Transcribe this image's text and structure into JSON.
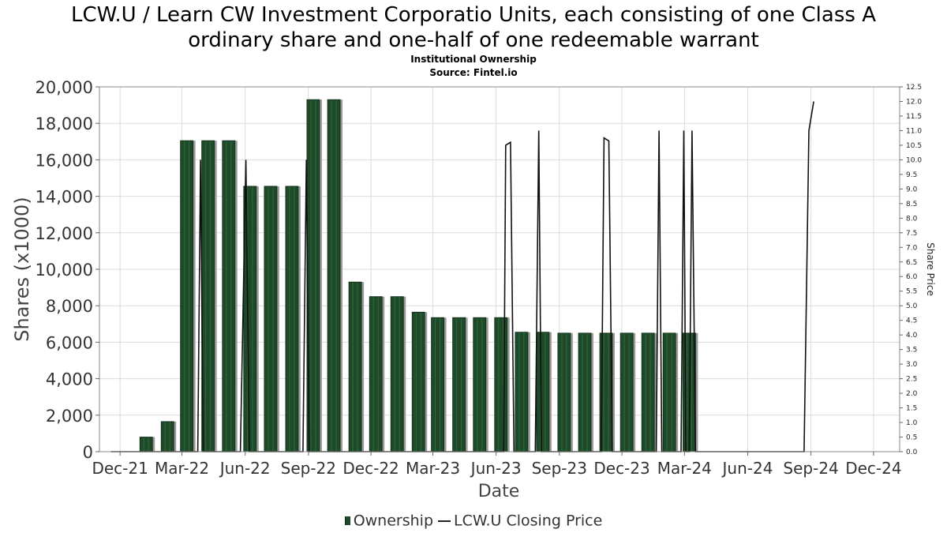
{
  "chart_data": {
    "type": "bar",
    "title_line1": "LCW.U / Learn CW Investment Corporatio Units, each consisting of one Class A",
    "title_line2": "ordinary share and one-half of one redeemable warrant",
    "subtitle": "Institutional Ownership",
    "source": "Source: Fintel.io",
    "xlabel": "Date",
    "ylabel": "Shares (x1000)",
    "y2label": "Share Price",
    "ylim": [
      0,
      20000
    ],
    "y2lim": [
      0,
      12.5
    ],
    "x_range": [
      "2021-11-01",
      "2025-01-08"
    ],
    "y_ticks": [
      "0",
      "2,000",
      "4,000",
      "6,000",
      "8,000",
      "10,000",
      "12,000",
      "14,000",
      "16,000",
      "18,000",
      "20,000"
    ],
    "y2_ticks": [
      "0.0",
      "0.5",
      "1.0",
      "1.5",
      "2.0",
      "2.5",
      "3.0",
      "3.5",
      "4.0",
      "4.5",
      "5.0",
      "5.5",
      "6.0",
      "6.5",
      "7.0",
      "7.5",
      "8.0",
      "8.5",
      "9.0",
      "9.5",
      "10.0",
      "10.5",
      "11.0",
      "11.5",
      "12.0",
      "12.5"
    ],
    "x_ticks": [
      {
        "label": "Dec-21",
        "date": "2021-12-01"
      },
      {
        "label": "Mar-22",
        "date": "2022-03-01"
      },
      {
        "label": "Jun-22",
        "date": "2022-06-01"
      },
      {
        "label": "Sep-22",
        "date": "2022-09-01"
      },
      {
        "label": "Dec-22",
        "date": "2022-12-01"
      },
      {
        "label": "Mar-23",
        "date": "2023-03-01"
      },
      {
        "label": "Jun-23",
        "date": "2023-06-01"
      },
      {
        "label": "Sep-23",
        "date": "2023-09-01"
      },
      {
        "label": "Dec-23",
        "date": "2023-12-01"
      },
      {
        "label": "Mar-24",
        "date": "2024-03-01"
      },
      {
        "label": "Jun-24",
        "date": "2024-06-01"
      },
      {
        "label": "Sep-24",
        "date": "2024-09-01"
      },
      {
        "label": "Dec-24",
        "date": "2024-12-01"
      }
    ],
    "series": [
      {
        "name": "Ownership",
        "color": "#1e4a2a",
        "points": [
          {
            "date": "2022-01-08",
            "value": 800
          },
          {
            "date": "2022-02-08",
            "value": 1650
          },
          {
            "date": "2022-03-08",
            "value": 17050
          },
          {
            "date": "2022-04-08",
            "value": 17050
          },
          {
            "date": "2022-05-08",
            "value": 17050
          },
          {
            "date": "2022-06-08",
            "value": 14550
          },
          {
            "date": "2022-07-08",
            "value": 14550
          },
          {
            "date": "2022-08-08",
            "value": 14550
          },
          {
            "date": "2022-09-08",
            "value": 19300
          },
          {
            "date": "2022-10-08",
            "value": 19300
          },
          {
            "date": "2022-11-08",
            "value": 9300
          },
          {
            "date": "2022-12-08",
            "value": 8500
          },
          {
            "date": "2023-01-08",
            "value": 8500
          },
          {
            "date": "2023-02-08",
            "value": 7650
          },
          {
            "date": "2023-03-08",
            "value": 7350
          },
          {
            "date": "2023-04-08",
            "value": 7350
          },
          {
            "date": "2023-05-08",
            "value": 7350
          },
          {
            "date": "2023-06-08",
            "value": 7350
          },
          {
            "date": "2023-07-08",
            "value": 6550
          },
          {
            "date": "2023-08-08",
            "value": 6550
          },
          {
            "date": "2023-09-08",
            "value": 6500
          },
          {
            "date": "2023-10-08",
            "value": 6500
          },
          {
            "date": "2023-11-08",
            "value": 6500
          },
          {
            "date": "2023-12-08",
            "value": 6500
          },
          {
            "date": "2024-01-08",
            "value": 6500
          },
          {
            "date": "2024-02-08",
            "value": 6500
          },
          {
            "date": "2024-03-08",
            "value": 6500
          }
        ]
      },
      {
        "name": "LCW.U Closing Price",
        "color": "#111111",
        "points": [
          [
            "2021-11-18",
            0
          ],
          [
            "2022-03-24",
            0
          ],
          [
            "2022-03-28",
            10.0
          ],
          [
            "2022-04-01",
            0
          ],
          [
            "2022-05-25",
            0
          ],
          [
            "2022-06-02",
            10.0
          ],
          [
            "2022-06-07",
            0
          ],
          [
            "2022-08-24",
            0
          ],
          [
            "2022-08-29",
            10.0
          ],
          [
            "2022-09-02",
            0
          ],
          [
            "2023-06-12",
            0
          ],
          [
            "2023-06-15",
            10.5
          ],
          [
            "2023-06-22",
            10.6
          ],
          [
            "2023-06-27",
            0
          ],
          [
            "2023-07-28",
            0
          ],
          [
            "2023-08-02",
            11.0
          ],
          [
            "2023-08-06",
            0
          ],
          [
            "2023-11-01",
            0
          ],
          [
            "2023-11-05",
            10.75
          ],
          [
            "2023-11-12",
            10.65
          ],
          [
            "2023-11-17",
            0
          ],
          [
            "2024-01-20",
            0
          ],
          [
            "2024-01-24",
            11.0
          ],
          [
            "2024-01-28",
            0
          ],
          [
            "2024-02-25",
            0
          ],
          [
            "2024-02-29",
            11.0
          ],
          [
            "2024-03-03",
            0
          ],
          [
            "2024-03-08",
            0
          ],
          [
            "2024-03-12",
            11.0
          ],
          [
            "2024-03-17",
            0
          ],
          [
            "2024-08-22",
            0
          ],
          [
            "2024-08-29",
            11.0
          ],
          [
            "2024-09-05",
            12.0
          ]
        ]
      }
    ],
    "legend": {
      "position": "bottom",
      "items": [
        "Ownership",
        "LCW.U Closing Price"
      ]
    },
    "grid": true
  }
}
